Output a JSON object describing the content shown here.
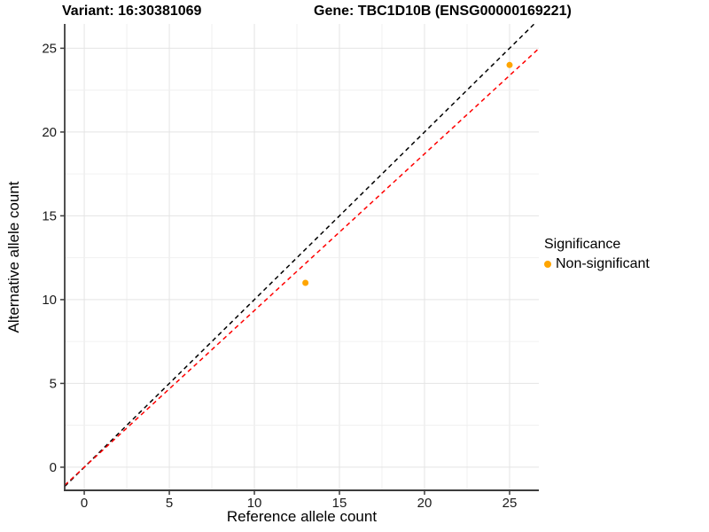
{
  "header": {
    "variant_title": "Variant: 16:30381069",
    "gene_title": "Gene: TBC1D10B (ENSG00000169221)"
  },
  "legend": {
    "title": "Significance",
    "items": [
      {
        "label": "Non-significant",
        "color": "#FFA500"
      }
    ]
  },
  "chart_data": {
    "type": "scatter",
    "title": "Variant: 16:30381069 / Gene: TBC1D10B (ENSG00000169221)",
    "xlabel": "Reference allele count",
    "ylabel": "Alternative allele count",
    "x_ticks": [
      0,
      5,
      10,
      15,
      20,
      25
    ],
    "y_ticks": [
      0,
      5,
      10,
      15,
      20,
      25
    ],
    "xlim": [
      -1.15,
      26.72
    ],
    "ylim": [
      -1.38,
      26.45
    ],
    "grid": {
      "minor_every": 2.5,
      "major_every": 5,
      "major_color": "#e4e4e4",
      "minor_color": "#f0f0f0"
    },
    "series": [
      {
        "name": "Non-significant",
        "color": "#FFA500",
        "points": [
          [
            13,
            11
          ],
          [
            25,
            24
          ]
        ]
      }
    ],
    "ref_lines": [
      {
        "name": "identity-line",
        "slope": 1.0,
        "intercept": 0,
        "color": "#000000",
        "dash": "5,4"
      },
      {
        "name": "fit-line",
        "slope": 0.935,
        "intercept": 0,
        "color": "#FF0000",
        "dash": "5,4"
      }
    ],
    "axis_color": "#3c3c3c",
    "tick_label_color": "#1a1a1a",
    "tick_label_size": 15
  }
}
